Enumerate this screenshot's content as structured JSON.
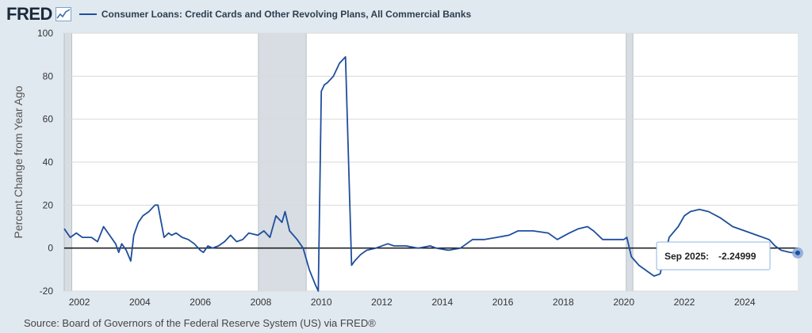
{
  "header": {
    "logo_text": "FRED",
    "logo_icon": "trend-chart-icon",
    "legend_label": "Consumer Loans: Credit Cards and Other Revolving Plans, All Commercial Banks",
    "series_color": "#1f4e9c"
  },
  "source_text": "Source: Board of Governors of the Federal Reserve System (US) via FRED®",
  "tooltip": {
    "label": "Sep 2025:",
    "value": "-2.24999"
  },
  "chart_data": {
    "type": "line",
    "ylabel": "Percent Change from Year Ago",
    "ylim": [
      -20,
      100
    ],
    "xlim": [
      2001.5,
      2025.75
    ],
    "y_ticks": [
      -20,
      0,
      20,
      40,
      60,
      80,
      100
    ],
    "x_ticks": [
      2002,
      2004,
      2006,
      2008,
      2010,
      2012,
      2014,
      2016,
      2018,
      2020,
      2022,
      2024
    ],
    "grid": true,
    "recessions": [
      [
        2001.5,
        2001.75
      ],
      [
        2007.92,
        2009.5
      ],
      [
        2020.08,
        2020.3
      ]
    ],
    "series": [
      {
        "name": "Consumer Loans: Credit Cards and Other Revolving Plans, All Commercial Banks",
        "x": [
          2001.5,
          2001.7,
          2001.9,
          2002.1,
          2002.4,
          2002.6,
          2002.8,
          2003.0,
          2003.2,
          2003.3,
          2003.4,
          2003.55,
          2003.7,
          2003.8,
          2003.95,
          2004.1,
          2004.3,
          2004.5,
          2004.6,
          2004.8,
          2004.95,
          2005.05,
          2005.2,
          2005.4,
          2005.6,
          2005.8,
          2006.0,
          2006.1,
          2006.25,
          2006.4,
          2006.6,
          2006.8,
          2007.0,
          2007.2,
          2007.4,
          2007.6,
          2007.9,
          2008.1,
          2008.3,
          2008.5,
          2008.7,
          2008.8,
          2008.95,
          2009.2,
          2009.4,
          2009.6,
          2009.8,
          2009.9,
          2010.0,
          2010.1,
          2010.2,
          2010.4,
          2010.6,
          2010.8,
          2011.0,
          2011.1,
          2011.3,
          2011.5,
          2011.8,
          2012.2,
          2012.4,
          2012.8,
          2013.2,
          2013.6,
          2013.8,
          2014.2,
          2014.6,
          2015.0,
          2015.4,
          2015.8,
          2016.2,
          2016.5,
          2017.0,
          2017.5,
          2017.8,
          2018.2,
          2018.5,
          2018.8,
          2019.0,
          2019.3,
          2019.8,
          2020.0,
          2020.1,
          2020.25,
          2020.5,
          2020.8,
          2021.0,
          2021.2,
          2021.5,
          2021.8,
          2022.0,
          2022.2,
          2022.5,
          2022.8,
          2023.2,
          2023.6,
          2024.0,
          2024.4,
          2024.8,
          2025.0,
          2025.2,
          2025.5,
          2025.75
        ],
        "values": [
          9,
          5,
          7,
          5,
          5,
          3,
          10,
          6,
          2,
          -2,
          2,
          -1,
          -6,
          6,
          12,
          15,
          17,
          20,
          20,
          5,
          7,
          6,
          7,
          5,
          4,
          2,
          -1,
          -2,
          1,
          0,
          1,
          3,
          6,
          3,
          4,
          7,
          6,
          8,
          5,
          15,
          12,
          17,
          8,
          4,
          0,
          -10,
          -17,
          -20,
          73,
          76,
          77,
          80,
          86,
          89,
          -8,
          -6,
          -3,
          -1,
          0,
          2,
          1,
          1,
          0,
          1,
          0,
          -1,
          0,
          4,
          4,
          5,
          6,
          8,
          8,
          7,
          4,
          7,
          9,
          10,
          8,
          4,
          4,
          4,
          5,
          -4,
          -8,
          -11,
          -13,
          -12,
          5,
          10,
          15,
          17,
          18,
          17,
          14,
          10,
          8,
          6,
          4,
          1,
          -1,
          -2,
          -2.25
        ]
      }
    ]
  }
}
